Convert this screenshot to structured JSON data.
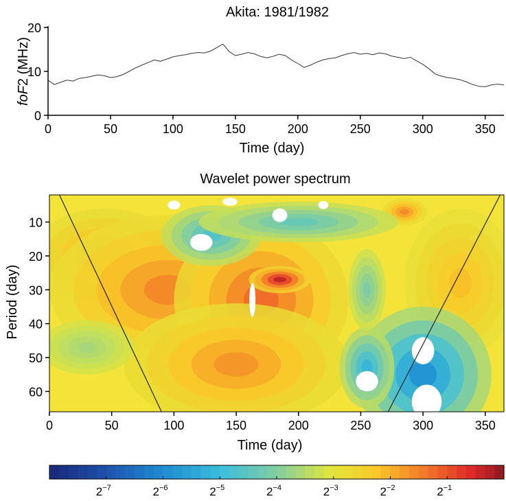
{
  "chart_data": [
    {
      "type": "line",
      "title": "Akita: 1981/1982",
      "ylabel_italic": "foF",
      "ylabel_rest": "2 (MHz)",
      "xlabel": "Time (day)",
      "xlim": [
        0,
        365
      ],
      "ylim": [
        0,
        20
      ],
      "xticks": [
        0,
        50,
        100,
        150,
        200,
        250,
        300,
        350
      ],
      "yticks": [
        0,
        10,
        20
      ],
      "series": [
        {
          "x": [
            0,
            5,
            10,
            15,
            20,
            25,
            30,
            35,
            40,
            45,
            50,
            55,
            60,
            65,
            70,
            75,
            80,
            85,
            90,
            95,
            100,
            105,
            110,
            115,
            120,
            125,
            130,
            135,
            140,
            145,
            150,
            155,
            160,
            165,
            170,
            175,
            180,
            185,
            190,
            195,
            200,
            205,
            210,
            215,
            220,
            225,
            230,
            235,
            240,
            245,
            250,
            255,
            260,
            265,
            270,
            275,
            280,
            285,
            290,
            295,
            300,
            305,
            310,
            315,
            320,
            325,
            330,
            335,
            340,
            345,
            350,
            355,
            360,
            365
          ],
          "y": [
            8.0,
            7.0,
            7.5,
            8.0,
            7.8,
            8.4,
            8.6,
            8.9,
            9.2,
            9.0,
            8.6,
            8.8,
            9.3,
            10.0,
            10.8,
            11.4,
            12.0,
            12.6,
            12.3,
            12.8,
            13.3,
            13.6,
            13.8,
            14.1,
            14.3,
            14.2,
            14.6,
            15.4,
            16.2,
            14.5,
            13.6,
            13.9,
            14.3,
            14.0,
            13.4,
            13.1,
            13.4,
            13.9,
            13.6,
            12.6,
            11.8,
            10.9,
            11.4,
            12.1,
            12.6,
            12.9,
            13.1,
            13.6,
            14.0,
            14.3,
            13.9,
            14.1,
            13.8,
            14.2,
            14.0,
            13.5,
            13.2,
            12.9,
            13.2,
            12.4,
            11.6,
            10.6,
            9.4,
            8.9,
            8.6,
            8.4,
            8.1,
            7.6,
            7.0,
            6.6,
            6.5,
            6.9,
            7.1,
            6.9
          ]
        }
      ]
    },
    {
      "type": "heatmap",
      "title": "Wavelet power spectrum",
      "xlabel": "Time (day)",
      "ylabel": "Period (day)",
      "xlim": [
        0,
        365
      ],
      "ylim": [
        2,
        66
      ],
      "y_inverted": true,
      "xticks": [
        0,
        50,
        100,
        150,
        200,
        250,
        300,
        350
      ],
      "yticks": [
        10,
        20,
        30,
        40,
        50,
        60
      ],
      "cone_of_influence": [
        {
          "x": [
            8,
            90
          ],
          "y": [
            2,
            66
          ]
        },
        {
          "x": [
            272,
            362
          ],
          "y": [
            66,
            2
          ]
        }
      ],
      "blobs": [
        {
          "x": 45,
          "y": 20,
          "rx": 60,
          "ry": 14,
          "value": 0.38
        },
        {
          "x": 95,
          "y": 30,
          "rx": 95,
          "ry": 22,
          "value": 0.5
        },
        {
          "x": 170,
          "y": 33,
          "rx": 70,
          "ry": 24,
          "value": 0.6
        },
        {
          "x": 185,
          "y": 27,
          "rx": 25,
          "ry": 4,
          "value": 0.9
        },
        {
          "x": 150,
          "y": 52,
          "rx": 90,
          "ry": 18,
          "value": 0.45
        },
        {
          "x": 330,
          "y": 28,
          "rx": 45,
          "ry": 22,
          "value": 0.3
        },
        {
          "x": 285,
          "y": 7,
          "rx": 18,
          "ry": 4,
          "value": 0.5
        },
        {
          "x": 300,
          "y": 55,
          "rx": 55,
          "ry": 20,
          "value": -0.95
        },
        {
          "x": 255,
          "y": 53,
          "rx": 22,
          "ry": 12,
          "value": -0.7
        },
        {
          "x": 130,
          "y": 14,
          "rx": 40,
          "ry": 9,
          "value": -0.55
        },
        {
          "x": 200,
          "y": 10,
          "rx": 80,
          "ry": 6,
          "value": -0.45
        },
        {
          "x": 30,
          "y": 47,
          "rx": 38,
          "ry": 8,
          "value": -0.2
        },
        {
          "x": 255,
          "y": 30,
          "rx": 15,
          "ry": 12,
          "value": -0.35
        }
      ],
      "white_regions": [
        {
          "x": 300,
          "y": 48,
          "rx": 9,
          "ry": 4
        },
        {
          "x": 255,
          "y": 57,
          "rx": 9,
          "ry": 3
        },
        {
          "x": 303,
          "y": 63,
          "rx": 12,
          "ry": 5
        },
        {
          "x": 122,
          "y": 16,
          "rx": 9,
          "ry": 2.5
        },
        {
          "x": 163,
          "y": 33,
          "rx": 2.5,
          "ry": 5
        },
        {
          "x": 185,
          "y": 8,
          "rx": 6,
          "ry": 2
        },
        {
          "x": 100,
          "y": 5,
          "rx": 5,
          "ry": 1.3
        },
        {
          "x": 145,
          "y": 4,
          "rx": 6,
          "ry": 1.2
        },
        {
          "x": 220,
          "y": 5,
          "rx": 4,
          "ry": 1.2
        }
      ],
      "colorbar": {
        "min": -8,
        "max": 0,
        "ticks": [
          -7,
          -6,
          -5,
          -4,
          -3,
          -2,
          -1
        ],
        "tick_base": "2",
        "tick_exponents": [
          "−7",
          "−6",
          "−5",
          "−4",
          "−3",
          "−2",
          "−1"
        ]
      }
    }
  ]
}
